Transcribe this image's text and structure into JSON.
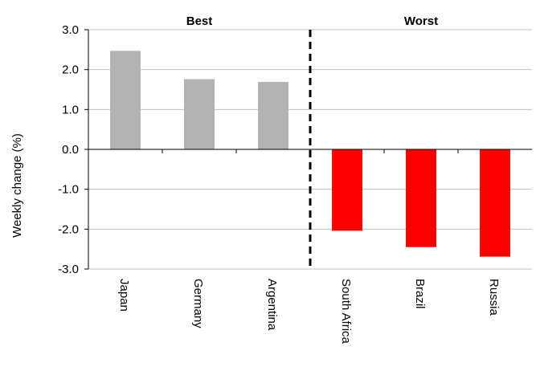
{
  "chart_data": {
    "type": "bar",
    "title": "",
    "xlabel": "",
    "ylabel": "Weekly change (%)",
    "ylim": [
      -3.0,
      3.0
    ],
    "yticks": [
      "3.0",
      "2.0",
      "1.0",
      "0.0",
      "-1.0",
      "-2.0",
      "-3.0"
    ],
    "grid": true,
    "groups": [
      {
        "label": "Best",
        "categories": [
          "Japan",
          "Germany",
          "Argentina"
        ],
        "values": [
          2.47,
          1.76,
          1.69
        ],
        "color": "#b3b3b3"
      },
      {
        "label": "Worst",
        "categories": [
          "South Africa",
          "Brazil",
          "Russia"
        ],
        "values": [
          -2.04,
          -2.45,
          -2.69
        ],
        "color": "#ff0000"
      }
    ],
    "categories": [
      "Japan",
      "Germany",
      "Argentina",
      "South Africa",
      "Brazil",
      "Russia"
    ],
    "values": [
      2.47,
      1.76,
      1.69,
      -2.04,
      -2.45,
      -2.69
    ],
    "colors": {
      "best": "#b3b3b3",
      "worst": "#ff0000",
      "grid": "#bfbfbf",
      "axis": "#000000",
      "divider": "#000000"
    }
  }
}
